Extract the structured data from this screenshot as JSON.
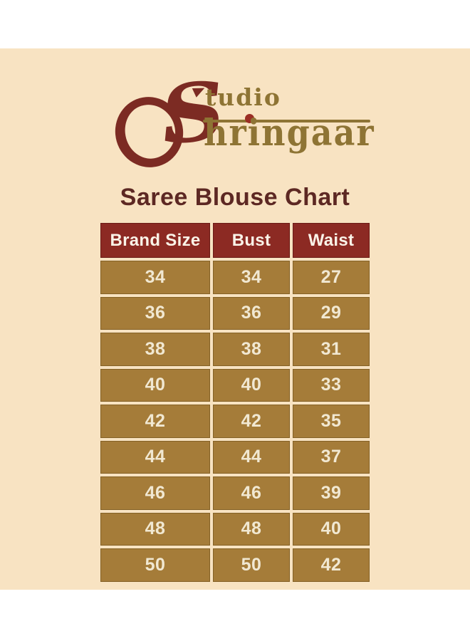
{
  "brand": {
    "logo_s": "S",
    "logo_studio": "tudio",
    "logo_shringaar": "hringaar"
  },
  "title": "Saree Blouse Chart",
  "chart_data": {
    "type": "table",
    "title": "Saree Blouse Chart",
    "columns": [
      "Brand Size",
      "Bust",
      "Waist"
    ],
    "rows": [
      [
        "34",
        "34",
        "27"
      ],
      [
        "36",
        "36",
        "29"
      ],
      [
        "38",
        "38",
        "31"
      ],
      [
        "40",
        "40",
        "33"
      ],
      [
        "42",
        "42",
        "35"
      ],
      [
        "44",
        "44",
        "37"
      ],
      [
        "46",
        "46",
        "39"
      ],
      [
        "48",
        "48",
        "40"
      ],
      [
        "50",
        "50",
        "42"
      ]
    ]
  },
  "colors": {
    "background_white": "#ffffff",
    "panel_cream": "#f8e3c2",
    "header_maroon": "#8c2a23",
    "header_text": "#faf3e8",
    "cell_tan": "#a57c39",
    "cell_text": "#f1e8d2",
    "title_maroon": "#5d2823",
    "logo_maroon": "#7c2b23",
    "logo_gold": "#8e7434",
    "logo_dot_red": "#9b2d24"
  }
}
